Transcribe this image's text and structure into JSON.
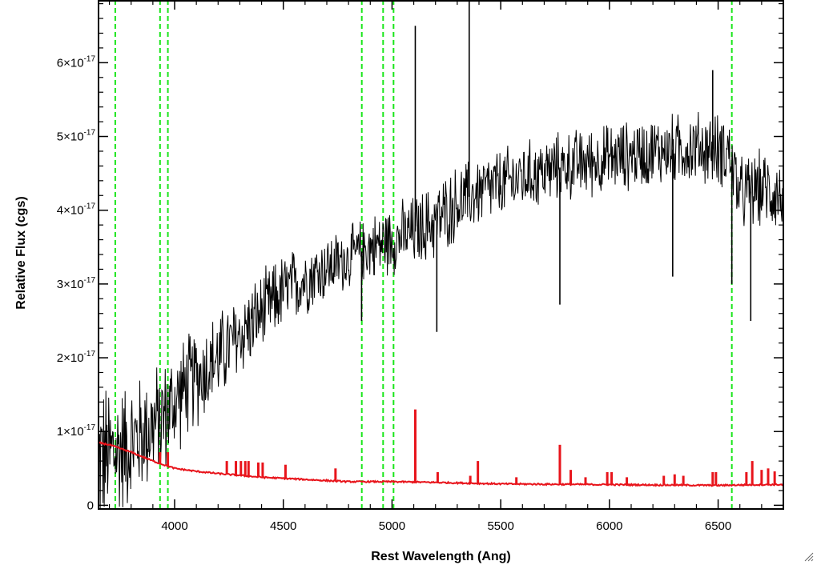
{
  "chart_data": {
    "type": "line",
    "title": "",
    "xlabel": "Rest Wavelength (Ang)",
    "ylabel": "Relative Flux (cgs)",
    "xlim": [
      3650,
      6800
    ],
    "ylim": [
      -5e-19,
      6.85e-17
    ],
    "grid": false,
    "x_ticks": [
      {
        "value": 4000,
        "label": "4000"
      },
      {
        "value": 4500,
        "label": "4500"
      },
      {
        "value": 5000,
        "label": "5000"
      },
      {
        "value": 5500,
        "label": "5500"
      },
      {
        "value": 6000,
        "label": "6000"
      },
      {
        "value": 6500,
        "label": "6500"
      }
    ],
    "y_ticks": [
      {
        "value": 0,
        "base": "0",
        "exp": ""
      },
      {
        "value": 1e-17,
        "base": "1×10",
        "exp": "-17"
      },
      {
        "value": 2e-17,
        "base": "2×10",
        "exp": "-17"
      },
      {
        "value": 3e-17,
        "base": "3×10",
        "exp": "-17"
      },
      {
        "value": 4e-17,
        "base": "4×10",
        "exp": "-17"
      },
      {
        "value": 5e-17,
        "base": "5×10",
        "exp": "-17"
      },
      {
        "value": 6e-17,
        "base": "6×10",
        "exp": "-17"
      }
    ],
    "series": [
      {
        "color": "#000000",
        "style": "noisy-spectrum",
        "continuum": [
          [
            3650,
            0.6
          ],
          [
            3800,
            0.85
          ],
          [
            3950,
            1.2
          ],
          [
            4050,
            1.6
          ],
          [
            4200,
            2.0
          ],
          [
            4350,
            2.45
          ],
          [
            4500,
            2.9
          ],
          [
            4650,
            3.15
          ],
          [
            4800,
            3.35
          ],
          [
            4900,
            3.5
          ],
          [
            5000,
            3.6
          ],
          [
            5100,
            3.7
          ],
          [
            5200,
            3.85
          ],
          [
            5300,
            4.1
          ],
          [
            5400,
            4.25
          ],
          [
            5500,
            4.35
          ],
          [
            5600,
            4.45
          ],
          [
            5800,
            4.6
          ],
          [
            6000,
            4.7
          ],
          [
            6200,
            4.8
          ],
          [
            6400,
            4.85
          ],
          [
            6550,
            4.8
          ],
          [
            6600,
            4.2
          ],
          [
            6700,
            4.3
          ],
          [
            6800,
            4.2
          ]
        ],
        "noise_envelope": [
          [
            3650,
            1.0
          ],
          [
            3800,
            0.8
          ],
          [
            4000,
            0.7
          ],
          [
            4300,
            0.55
          ],
          [
            4800,
            0.4
          ],
          [
            5200,
            0.5
          ],
          [
            5600,
            0.45
          ],
          [
            6200,
            0.45
          ],
          [
            6800,
            0.5
          ]
        ],
        "features": [
          {
            "x": 5107,
            "y": 6.5
          },
          {
            "x": 5355,
            "y": 6.9
          },
          {
            "x": 5772,
            "y": 2.72
          },
          {
            "x": 4860,
            "y": 2.5
          },
          {
            "x": 5206,
            "y": 2.35
          },
          {
            "x": 6291,
            "y": 3.1
          },
          {
            "x": 6563,
            "y": 3.0
          },
          {
            "x": 6650,
            "y": 2.5
          },
          {
            "x": 6475,
            "y": 5.9
          }
        ]
      },
      {
        "color": "#e8141b",
        "style": "model-spectrum",
        "continuum": [
          [
            3650,
            0.85
          ],
          [
            3700,
            0.82
          ],
          [
            3800,
            0.72
          ],
          [
            3900,
            0.6
          ],
          [
            4000,
            0.5
          ],
          [
            4100,
            0.46
          ],
          [
            4200,
            0.43
          ],
          [
            4400,
            0.38
          ],
          [
            4600,
            0.35
          ],
          [
            4800,
            0.32
          ],
          [
            5000,
            0.32
          ],
          [
            5200,
            0.31
          ],
          [
            5500,
            0.29
          ],
          [
            6000,
            0.28
          ],
          [
            6500,
            0.27
          ],
          [
            6700,
            0.28
          ],
          [
            6800,
            0.28
          ]
        ],
        "emission_lines": [
          {
            "x": 3933,
            "y": 0.72
          },
          {
            "x": 3969,
            "y": 0.72
          },
          {
            "x": 4240,
            "y": 0.6
          },
          {
            "x": 4282,
            "y": 0.6
          },
          {
            "x": 4305,
            "y": 0.6
          },
          {
            "x": 4325,
            "y": 0.6
          },
          {
            "x": 4340,
            "y": 0.6
          },
          {
            "x": 4385,
            "y": 0.58
          },
          {
            "x": 4405,
            "y": 0.58
          },
          {
            "x": 4510,
            "y": 0.55
          },
          {
            "x": 4740,
            "y": 0.5
          },
          {
            "x": 5107,
            "y": 1.3
          },
          {
            "x": 5210,
            "y": 0.45
          },
          {
            "x": 5360,
            "y": 0.4
          },
          {
            "x": 5395,
            "y": 0.6
          },
          {
            "x": 5572,
            "y": 0.38
          },
          {
            "x": 5772,
            "y": 0.82
          },
          {
            "x": 5822,
            "y": 0.48
          },
          {
            "x": 5890,
            "y": 0.38
          },
          {
            "x": 5990,
            "y": 0.45
          },
          {
            "x": 6010,
            "y": 0.45
          },
          {
            "x": 6080,
            "y": 0.38
          },
          {
            "x": 6250,
            "y": 0.4
          },
          {
            "x": 6300,
            "y": 0.42
          },
          {
            "x": 6340,
            "y": 0.4
          },
          {
            "x": 6475,
            "y": 0.45
          },
          {
            "x": 6490,
            "y": 0.45
          },
          {
            "x": 6630,
            "y": 0.45
          },
          {
            "x": 6657,
            "y": 0.6
          },
          {
            "x": 6700,
            "y": 0.48
          },
          {
            "x": 6730,
            "y": 0.5
          },
          {
            "x": 6760,
            "y": 0.46
          }
        ]
      }
    ],
    "vertical_markers": {
      "color": "#19e619",
      "style": "dashed",
      "x": [
        3727,
        3933,
        3969,
        4861,
        4959,
        5007,
        6563
      ]
    }
  }
}
